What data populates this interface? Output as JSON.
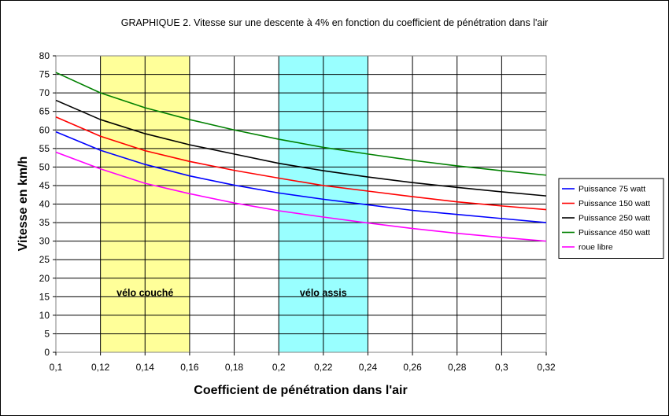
{
  "chart_data": {
    "type": "line",
    "title": "GRAPHIQUE 2. Vitesse sur une descente à  4% en fonction du coefficient de pénétration dans l'air",
    "xlabel": "Coefficient de pénétration dans l'air",
    "ylabel": "Vitesse en km/h",
    "xlim": [
      0.1,
      0.32
    ],
    "ylim": [
      0,
      80
    ],
    "grid": true,
    "legend_position": "right",
    "x_ticks": [
      "0,1",
      "0,12",
      "0,14",
      "0,16",
      "0,18",
      "0,2",
      "0,22",
      "0,24",
      "0,26",
      "0,28",
      "0,3",
      "0,32"
    ],
    "y_ticks": [
      "0",
      "5",
      "10",
      "15",
      "20",
      "25",
      "30",
      "35",
      "40",
      "45",
      "50",
      "55",
      "60",
      "65",
      "70",
      "75",
      "80"
    ],
    "x": [
      0.1,
      0.12,
      0.14,
      0.16,
      0.18,
      0.2,
      0.22,
      0.24,
      0.26,
      0.28,
      0.3,
      0.32
    ],
    "series": [
      {
        "name": "Puissance 75 watt",
        "color": "#0000ff",
        "values": [
          59.5,
          54.5,
          50.7,
          47.6,
          45.1,
          43.0,
          41.3,
          39.8,
          38.3,
          37.2,
          36.1,
          35.0
        ]
      },
      {
        "name": "Puissance 150 watt",
        "color": "#ff0000",
        "values": [
          63.5,
          58.3,
          54.4,
          51.5,
          49.1,
          47.0,
          45.0,
          43.5,
          42.0,
          40.6,
          39.5,
          38.5
        ]
      },
      {
        "name": "Puissance 250 watt",
        "color": "#000000",
        "values": [
          68.0,
          62.8,
          59.0,
          56.0,
          53.5,
          51.0,
          49.0,
          47.3,
          45.8,
          44.5,
          43.3,
          42.2
        ]
      },
      {
        "name": "Puissance 450 watt",
        "color": "#008000",
        "values": [
          75.5,
          70.0,
          66.0,
          62.8,
          60.0,
          57.5,
          55.3,
          53.5,
          51.8,
          50.3,
          49.0,
          47.8
        ]
      },
      {
        "name": "roue libre",
        "color": "#ff00ff",
        "values": [
          54.0,
          49.5,
          45.6,
          42.8,
          40.3,
          38.2,
          36.5,
          34.9,
          33.4,
          32.1,
          31.0,
          30.0
        ]
      }
    ],
    "bands": [
      {
        "label": "vélo couché",
        "x_start": 0.12,
        "x_end": 0.16,
        "color": "#ffff99"
      },
      {
        "label": "vélo assis",
        "x_start": 0.2,
        "x_end": 0.24,
        "color": "#99ffff"
      }
    ],
    "band_label_y": 16
  }
}
